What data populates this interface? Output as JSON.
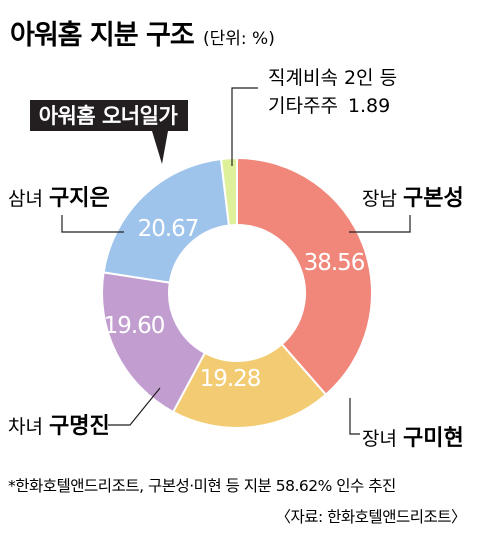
{
  "title": "아워홈 지분 구조",
  "unit": "(단위: %)",
  "owner_badge": "아워홈 오너일가",
  "chart_data": {
    "type": "pie",
    "donut": true,
    "slices": [
      {
        "prefix": "장남",
        "name": "구본성",
        "value": 38.56,
        "value_label": "38.56",
        "color": "#f0877a"
      },
      {
        "prefix": "장녀",
        "name": "구미현",
        "value": 19.28,
        "value_label": "19.28",
        "color": "#f3cb73"
      },
      {
        "prefix": "차녀",
        "name": "구명진",
        "value": 19.6,
        "value_label": "19.60",
        "color": "#c29ed0"
      },
      {
        "prefix": "삼녀",
        "name": "구지은",
        "value": 20.67,
        "value_label": "20.67",
        "color": "#9fc4ec"
      },
      {
        "prefix": "",
        "name": "",
        "value": 1.89,
        "value_label": "",
        "color": "#def09a"
      }
    ],
    "other_label_line1": "직계비속 2인 등",
    "other_label_line2": "기타주주",
    "other_value": "1.89"
  },
  "footnote": "*한화호텔앤드리조트, 구본성·미현 등 지분 58.62% 인수 추진",
  "source": "〈자료: 한화호텔앤드리조트〉"
}
